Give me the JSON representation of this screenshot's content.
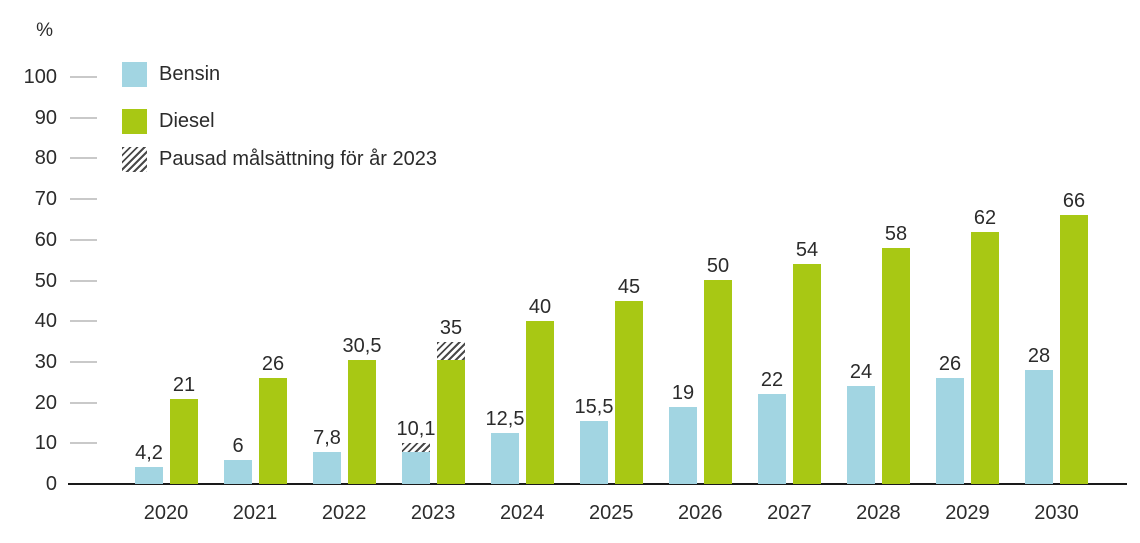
{
  "chart_data": {
    "type": "bar",
    "title": "",
    "ylabel": "%",
    "xlabel": "",
    "ylim": [
      0,
      100
    ],
    "ytick_step": 10,
    "yticks": [
      0,
      10,
      20,
      30,
      40,
      50,
      60,
      70,
      80,
      90,
      100
    ],
    "grid": "tick-dashes-only",
    "legend_position": "top-left-inside",
    "categories": [
      "2020",
      "2021",
      "2022",
      "2023",
      "2024",
      "2025",
      "2026",
      "2027",
      "2028",
      "2029",
      "2030"
    ],
    "series": [
      {
        "name": "Bensin",
        "color": "#a2d5e2",
        "values": [
          4.2,
          6,
          7.8,
          10.1,
          12.5,
          15.5,
          19,
          22,
          24,
          26,
          28
        ],
        "labels": [
          "4,2",
          "6",
          "7,8",
          "10,1",
          "12,5",
          "15,5",
          "19",
          "22",
          "24",
          "26",
          "28"
        ]
      },
      {
        "name": "Diesel",
        "color": "#a8c814",
        "values": [
          21,
          26,
          30.5,
          35,
          40,
          45,
          50,
          54,
          58,
          62,
          66
        ],
        "labels": [
          "21",
          "26",
          "30,5",
          "35",
          "40",
          "45",
          "50",
          "54",
          "58",
          "62",
          "66"
        ]
      }
    ],
    "paused_segments": [
      {
        "series": "Bensin",
        "category": "2023",
        "solid_to": 7.8,
        "hatched_to": 10.1
      },
      {
        "series": "Diesel",
        "category": "2023",
        "solid_to": 30.5,
        "hatched_to": 35
      }
    ],
    "legend": [
      {
        "label": "Bensin",
        "swatch": "bensin"
      },
      {
        "label": "Diesel",
        "swatch": "diesel"
      },
      {
        "label": "Pausad målsättning för år 2023",
        "swatch": "hatch"
      }
    ],
    "colors": {
      "bensin": "#a2d5e2",
      "diesel": "#a8c814",
      "hatch_stripe": "#4a4a4a",
      "axis_line": "#1a1a1a",
      "tick_dash": "#c9c9c9",
      "text": "#2b2b2b"
    }
  }
}
